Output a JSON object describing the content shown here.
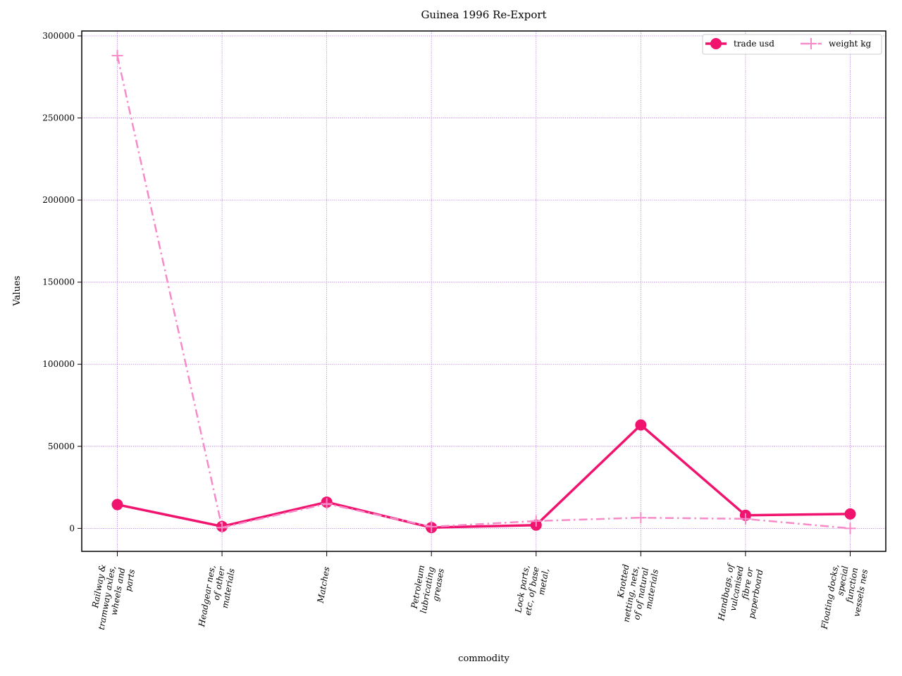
{
  "chart_data": {
    "type": "line",
    "title": "Guinea 1996 Re-Export",
    "xlabel": "commodity",
    "ylabel": "Values",
    "categories": [
      [
        "Railway &",
        "tramway axles,",
        "wheels and",
        "parts"
      ],
      [
        "Headgear nes,",
        "of other",
        "materials"
      ],
      [
        "Matches"
      ],
      [
        "Petroleum",
        "lubricating",
        "greases"
      ],
      [
        "Lock parts,",
        "etc, of base",
        "metal,"
      ],
      [
        "Knotted",
        "netting, nets,",
        "of of natural",
        "materials"
      ],
      [
        "Handbags, of",
        "vulcanised",
        "fibre or",
        "paperboard"
      ],
      [
        "Floating docks,",
        "special",
        "function",
        "vessels nes"
      ]
    ],
    "series": [
      {
        "name": "trade usd",
        "color": "#f0146e",
        "values": [
          14500,
          1200,
          16000,
          500,
          2000,
          63000,
          8000,
          8800
        ]
      },
      {
        "name": "weight kg",
        "color": "#f78ac8",
        "values": [
          288000,
          500,
          15000,
          1000,
          4500,
          6500,
          5800,
          0
        ]
      }
    ],
    "ylim": [
      -14000,
      303000
    ],
    "yticks": [
      0,
      50000,
      100000,
      150000,
      200000,
      250000,
      300000
    ],
    "grid": true,
    "grid_color": "#b36ae2",
    "legend_position": "top-right"
  }
}
